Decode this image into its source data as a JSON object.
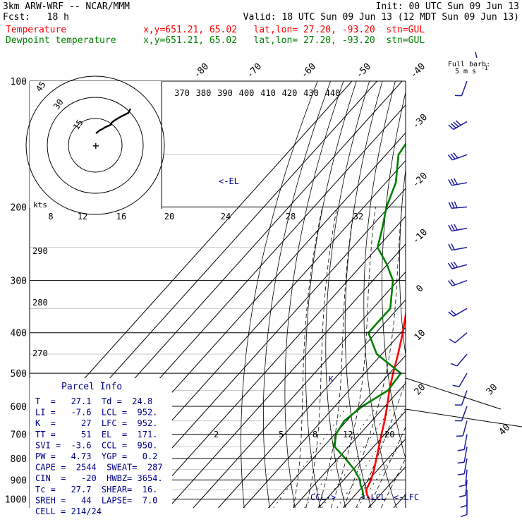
{
  "header": {
    "model": "3km ARW-WRF -- NCAR/MMM",
    "init": "Init: 00 UTC Sun 09 Jun 13",
    "fcst": "Fcst:   18 h",
    "valid": "Valid: 18 UTC Sun 09 Jun 13 (12 MDT Sun 09 Jun 13)",
    "temp_label": "Temperature",
    "temp_info": "x,y=651.21, 65.02   lat,lon= 27.20, -93.20  stn=GUL",
    "dew_label": "Dewpoint temperature",
    "dew_info": "x,y=651.21, 65.02   lat,lon= 27.20, -93.20  stn=GUL"
  },
  "colors": {
    "temperature": "#ff0000",
    "dewpoint": "#008000",
    "text_blue": "#00008b",
    "barb": "#1c1ca0",
    "hodo": "#000000"
  },
  "chart_data": {
    "type": "line",
    "pressure_labels": [
      "100",
      "200",
      "300",
      "400",
      "500",
      "600",
      "700",
      "800",
      "900",
      "1000"
    ],
    "pressure_levels": [
      100,
      200,
      300,
      400,
      500,
      600,
      700,
      800,
      900,
      1000
    ],
    "top_isotherm_labels": [
      "-80",
      "-70",
      "-60",
      "-50",
      "-40"
    ],
    "right_isotherm_labels": [
      "-30",
      "-20",
      "-10",
      "0",
      "10",
      "20",
      "30",
      "40"
    ],
    "theta_labels": [
      "370",
      "380",
      "390",
      "400",
      "410",
      "420",
      "430",
      "440"
    ],
    "left_theta_labels": [
      "290",
      "280",
      "270"
    ],
    "mixing_ratio_labels": [
      "2",
      "5",
      "8",
      "12",
      "20"
    ],
    "series": [
      {
        "name": "Temperature",
        "p": [
          1000,
          975,
          950,
          925,
          900,
          850,
          800,
          750,
          700,
          650,
          600,
          550,
          500,
          450,
          400,
          350,
          300,
          250,
          200,
          175,
          150,
          125,
          100
        ],
        "t": [
          27.1,
          24.5,
          22.5,
          21.8,
          20.9,
          18.4,
          15.4,
          12.2,
          8.7,
          5.1,
          0.9,
          -3.9,
          -8.6,
          -13.5,
          -19.3,
          -26.4,
          -34.9,
          -44.8,
          -56.0,
          -62.0,
          -66.0,
          -67.0,
          -66.5
        ]
      },
      {
        "name": "Dewpoint temperature",
        "p": [
          1000,
          975,
          950,
          925,
          900,
          850,
          800,
          750,
          700,
          650,
          600,
          550,
          500,
          450,
          400,
          350,
          300,
          275,
          250,
          225,
          200,
          175,
          150,
          125,
          100
        ],
        "t": [
          24.8,
          23.0,
          21.0,
          18.5,
          16.5,
          10.5,
          3.0,
          -5.5,
          -9.5,
          -11.0,
          -9.0,
          -4.5,
          -5.5,
          -22.0,
          -33.0,
          -33.0,
          -42.0,
          -50.0,
          -60.0,
          -65.0,
          -71.0,
          -76.0,
          -85.0,
          -88.0,
          -87.5
        ]
      }
    ],
    "markers": {
      "el": "<-EL",
      "ccl": "CCL->",
      "lcl": "<-LCL",
      "lfc": "<-LFC"
    },
    "hodograph": {
      "units": "kts",
      "ring_labels": [
        "15",
        "30",
        "45"
      ],
      "speed_labels": [
        "8",
        "12",
        "16",
        "20",
        "24",
        "28",
        "32"
      ]
    },
    "barb_header": {
      "line1": "Full barb:",
      "line2": "5 m s",
      "exp": "-1"
    },
    "wind_barbs": [
      {
        "p": 100,
        "speed": 5,
        "dir": 200
      },
      {
        "p": 125,
        "speed": 20,
        "dir": 240
      },
      {
        "p": 150,
        "speed": 15,
        "dir": 250
      },
      {
        "p": 175,
        "speed": 18,
        "dir": 260
      },
      {
        "p": 200,
        "speed": 18,
        "dir": 265
      },
      {
        "p": 225,
        "speed": 15,
        "dir": 260
      },
      {
        "p": 250,
        "speed": 13,
        "dir": 260
      },
      {
        "p": 275,
        "speed": 15,
        "dir": 255
      },
      {
        "p": 300,
        "speed": 10,
        "dir": 250
      },
      {
        "p": 350,
        "speed": 10,
        "dir": 240
      },
      {
        "p": 400,
        "speed": 9,
        "dir": 230
      },
      {
        "p": 450,
        "speed": 8,
        "dir": 220
      },
      {
        "p": 500,
        "speed": 8,
        "dir": 210
      },
      {
        "p": 550,
        "speed": 7,
        "dir": 200
      },
      {
        "p": 600,
        "speed": 7,
        "dir": 200
      },
      {
        "p": 650,
        "speed": 6,
        "dir": 195
      },
      {
        "p": 700,
        "speed": 6,
        "dir": 190
      },
      {
        "p": 750,
        "speed": 6,
        "dir": 190
      },
      {
        "p": 800,
        "speed": 7,
        "dir": 190
      },
      {
        "p": 850,
        "speed": 8,
        "dir": 185
      },
      {
        "p": 900,
        "speed": 8,
        "dir": 185
      },
      {
        "p": 950,
        "speed": 7,
        "dir": 180
      },
      {
        "p": 1000,
        "speed": 6,
        "dir": 180
      }
    ],
    "wind_scale_labels": [
      "30",
      "40"
    ]
  },
  "parcel_info": {
    "title": "Parcel Info",
    "lines": [
      "T  =   27.1  Td =  24.8",
      "LI =   -7.6  LCL =  952.",
      "K  =     27  LFC =  952.",
      "TT =     51  EL  =  171.",
      "SVI =  -3.6  CCL =  950.",
      "PW =   4.73  YGP =   0.2",
      "CAPE =  2544  SWEAT=  287",
      "CIN  =   -20  HWBZ= 3654.",
      "Tc =   27.7  SHEAR=  16.",
      "SREH =   44  LAPSE=  7.0",
      "CELL = 214/24"
    ]
  }
}
